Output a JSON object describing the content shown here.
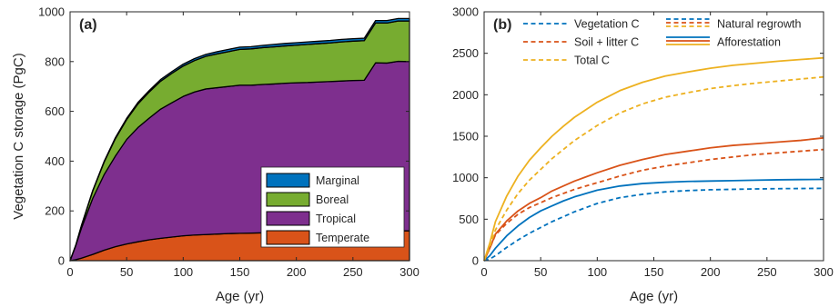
{
  "chart_data": [
    {
      "type": "area",
      "panel_label": "(a)",
      "xlabel": "Age (yr)",
      "ylabel": "Vegetation C storage (PgC)",
      "xlim": [
        0,
        300
      ],
      "ylim": [
        0,
        1000
      ],
      "xticks": [
        0,
        50,
        100,
        150,
        200,
        250,
        300
      ],
      "yticks": [
        0,
        200,
        400,
        600,
        800,
        1000
      ],
      "grid": false,
      "stacked": true,
      "legend_position": "bottom-right",
      "legend_order": [
        "Marginal",
        "Boreal",
        "Tropical",
        "Temperate"
      ],
      "x": [
        0,
        5,
        10,
        20,
        30,
        40,
        50,
        60,
        70,
        80,
        90,
        100,
        110,
        120,
        130,
        140,
        150,
        160,
        170,
        180,
        190,
        200,
        210,
        220,
        230,
        240,
        250,
        260,
        270,
        280,
        290,
        300
      ],
      "series": [
        {
          "name": "Temperate",
          "color": "#D95319",
          "values": [
            0,
            4,
            10,
            25,
            42,
            56,
            67,
            76,
            84,
            90,
            95,
            100,
            103,
            105,
            107,
            109,
            110,
            111,
            112,
            113,
            114,
            115,
            116,
            116,
            117,
            117,
            118,
            118,
            119,
            119,
            120,
            120
          ]
        },
        {
          "name": "Tropical",
          "color": "#7E2F8E",
          "values": [
            0,
            56,
            120,
            225,
            303,
            364,
            420,
            459,
            489,
            519,
            540,
            560,
            575,
            585,
            588,
            591,
            595,
            594,
            596,
            597,
            599,
            600,
            600,
            602,
            603,
            605,
            606,
            607,
            676,
            675,
            681,
            680
          ]
        },
        {
          "name": "Boreal",
          "color": "#77AC30",
          "values": [
            0,
            2,
            10,
            30,
            50,
            70,
            80,
            95,
            105,
            112,
            118,
            122,
            126,
            131,
            136,
            140,
            144,
            146,
            148,
            149,
            150,
            151,
            153,
            154,
            155,
            157,
            158,
            159,
            160,
            161,
            162,
            163
          ]
        },
        {
          "name": "Marginal",
          "color": "#0072BD",
          "values": [
            0,
            0,
            1,
            2,
            3,
            4,
            5,
            6,
            6,
            7,
            7,
            8,
            8,
            8,
            9,
            9,
            9,
            9,
            9,
            10,
            10,
            10,
            10,
            10,
            10,
            10,
            10,
            10,
            10,
            10,
            10,
            10
          ]
        }
      ]
    },
    {
      "type": "line",
      "panel_label": "(b)",
      "xlabel": "Age (yr)",
      "ylabel": "",
      "xlim": [
        0,
        300
      ],
      "ylim": [
        0,
        3000
      ],
      "xticks": [
        0,
        50,
        100,
        150,
        200,
        250,
        300
      ],
      "yticks": [
        0,
        500,
        1000,
        1500,
        2000,
        2500,
        3000
      ],
      "grid": false,
      "legend_position": "top-left",
      "legend_items": [
        {
          "label": "Vegetation C",
          "kind": "line",
          "color": "#0072BD",
          "style": "dashed"
        },
        {
          "label": "Soil + litter C",
          "kind": "line",
          "color": "#D95319",
          "style": "dashed"
        },
        {
          "label": "Total C",
          "kind": "line",
          "color": "#EDB120",
          "style": "dashed"
        },
        {
          "label": "Natural regrowth",
          "kind": "group",
          "style": "dashed",
          "colors": [
            "#0072BD",
            "#D95319",
            "#EDB120"
          ]
        },
        {
          "label": "Afforestation",
          "kind": "group",
          "style": "solid",
          "colors": [
            "#0072BD",
            "#D95319",
            "#EDB120"
          ]
        }
      ],
      "x": [
        0,
        5,
        10,
        20,
        30,
        40,
        50,
        60,
        70,
        80,
        90,
        100,
        120,
        140,
        160,
        180,
        200,
        220,
        240,
        260,
        280,
        300
      ],
      "series": [
        {
          "name": "Vegetation C",
          "regime": "Afforestation",
          "color": "#0072BD",
          "style": "solid",
          "values": [
            0,
            60,
            150,
            300,
            420,
            520,
            600,
            660,
            720,
            770,
            810,
            850,
            900,
            930,
            945,
            955,
            960,
            965,
            970,
            975,
            978,
            980
          ]
        },
        {
          "name": "Vegetation C",
          "regime": "Natural regrowth",
          "color": "#0072BD",
          "style": "dashed",
          "values": [
            0,
            20,
            60,
            160,
            250,
            330,
            400,
            470,
            530,
            590,
            640,
            690,
            760,
            800,
            830,
            845,
            855,
            860,
            865,
            868,
            870,
            872
          ]
        },
        {
          "name": "Soil + litter C",
          "regime": "Afforestation",
          "color": "#D95319",
          "style": "solid",
          "values": [
            0,
            150,
            320,
            480,
            600,
            690,
            760,
            840,
            900,
            960,
            1010,
            1060,
            1150,
            1220,
            1280,
            1320,
            1360,
            1390,
            1410,
            1430,
            1450,
            1480
          ]
        },
        {
          "name": "Soil + litter C",
          "regime": "Natural regrowth",
          "color": "#D95319",
          "style": "dashed",
          "values": [
            0,
            150,
            310,
            450,
            560,
            640,
            700,
            760,
            810,
            860,
            900,
            940,
            1020,
            1090,
            1140,
            1180,
            1220,
            1250,
            1280,
            1300,
            1320,
            1340
          ]
        },
        {
          "name": "Total C",
          "regime": "Afforestation",
          "color": "#EDB120",
          "style": "solid",
          "values": [
            0,
            210,
            470,
            780,
            1020,
            1210,
            1360,
            1500,
            1620,
            1730,
            1820,
            1910,
            2050,
            2150,
            2225,
            2275,
            2320,
            2355,
            2380,
            2405,
            2425,
            2445
          ]
        },
        {
          "name": "Total C",
          "regime": "Natural regrowth",
          "color": "#EDB120",
          "style": "dashed",
          "values": [
            0,
            170,
            370,
            610,
            810,
            970,
            1100,
            1230,
            1340,
            1450,
            1540,
            1630,
            1780,
            1890,
            1970,
            2025,
            2075,
            2110,
            2140,
            2165,
            2190,
            2215
          ]
        }
      ]
    }
  ]
}
